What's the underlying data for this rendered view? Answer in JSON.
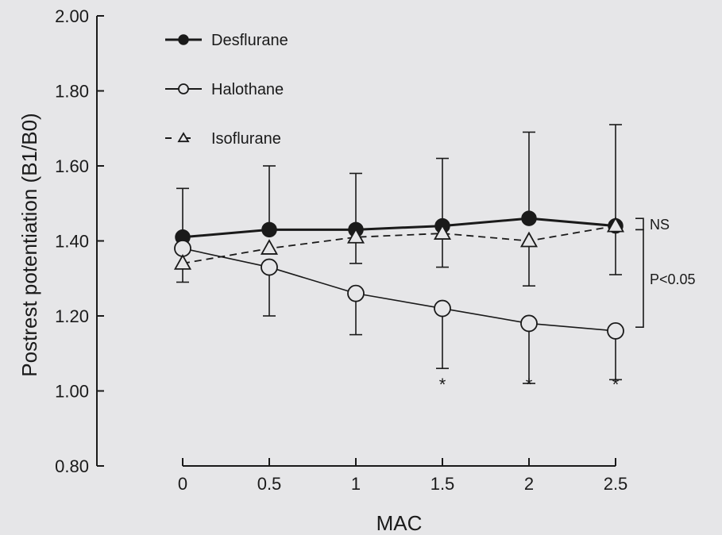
{
  "chart_data": {
    "type": "line",
    "title": "",
    "xlabel": "MAC",
    "ylabel": "Postrest potentiation (B1/B0)",
    "x": [
      0,
      0.5,
      1,
      1.5,
      2,
      2.5
    ],
    "x_tick_labels": [
      "0",
      "0.5",
      "1",
      "1.5",
      "2",
      "2.5"
    ],
    "ylim": [
      0.8,
      2.0
    ],
    "y_tick_labels": [
      "0.80",
      "1.00",
      "1.20",
      "1.40",
      "1.60",
      "1.80",
      "2.00"
    ],
    "legend_position": "top-left",
    "series": [
      {
        "name": "Desflurane",
        "marker": "filled-circle",
        "line_style": "solid-thick",
        "values": [
          1.41,
          1.43,
          1.43,
          1.44,
          1.46,
          1.44
        ],
        "error_upper": [
          1.54,
          1.6,
          1.58,
          1.62,
          1.69,
          1.71
        ],
        "error_lower": [
          1.29,
          null,
          null,
          null,
          null,
          null
        ]
      },
      {
        "name": "Halothane",
        "marker": "open-circle",
        "line_style": "solid-thin",
        "values": [
          1.38,
          1.33,
          1.26,
          1.22,
          1.18,
          1.16
        ],
        "error_upper": [
          null,
          null,
          null,
          null,
          null,
          null
        ],
        "error_lower": [
          null,
          1.2,
          1.15,
          1.06,
          1.02,
          1.03
        ]
      },
      {
        "name": "Isoflurane",
        "marker": "open-triangle",
        "line_style": "dashed",
        "values": [
          1.34,
          1.38,
          1.41,
          1.42,
          1.4,
          1.44
        ],
        "error_upper": [
          null,
          null,
          null,
          null,
          null,
          null
        ],
        "error_lower": [
          null,
          null,
          1.34,
          1.33,
          1.28,
          1.31
        ]
      }
    ],
    "significance_markers": [
      {
        "x": 1.5,
        "symbol": "*"
      },
      {
        "x": 2,
        "symbol": "*"
      },
      {
        "x": 2.5,
        "symbol": "*"
      }
    ],
    "bracket_annotations": [
      {
        "label": "NS",
        "y_from": 1.43,
        "y_to": 1.46
      },
      {
        "label": "P<0.05",
        "y_from": 1.17,
        "y_to": 1.43
      }
    ]
  }
}
